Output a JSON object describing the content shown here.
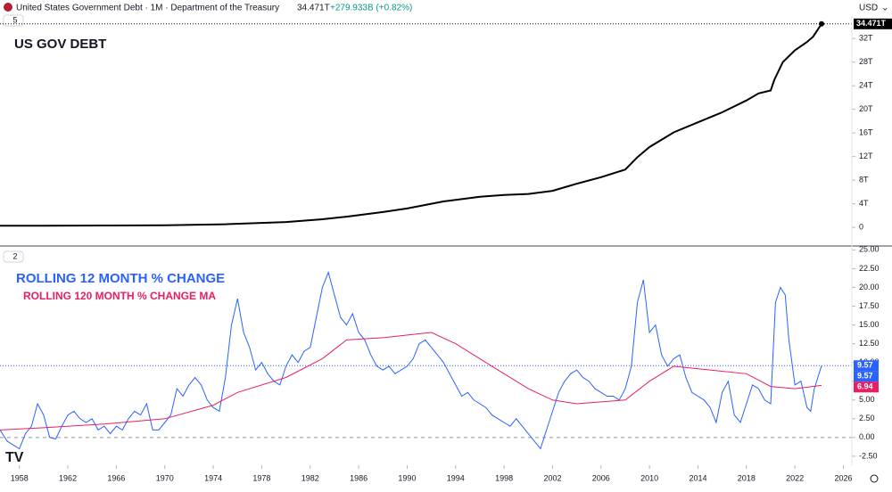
{
  "header": {
    "symbol": "United States Government Debt · 1M · Department of the Treasury",
    "price": "34.471T",
    "change": "+279.933B (+0.82%)",
    "currency": "USD",
    "pane_1": "5",
    "pane_2": "2"
  },
  "chart_data": [
    {
      "type": "line",
      "title": "US GOV DEBT",
      "color": "#000000",
      "x": [
        1956.4,
        1960,
        1965,
        1970,
        1975,
        1980,
        1983,
        1985,
        1988,
        1990,
        1993,
        1996,
        1998,
        2000,
        2002,
        2004,
        2006,
        2008,
        2009,
        2010,
        2012,
        2014,
        2016,
        2018,
        2019,
        2020,
        2020.3,
        2021,
        2022,
        2023,
        2023.5,
        2024.2
      ],
      "values": [
        0.27,
        0.29,
        0.32,
        0.37,
        0.53,
        0.91,
        1.38,
        1.82,
        2.6,
        3.2,
        4.4,
        5.2,
        5.5,
        5.67,
        6.2,
        7.4,
        8.5,
        9.8,
        11.9,
        13.6,
        16.1,
        17.8,
        19.5,
        21.5,
        22.7,
        23.2,
        25.0,
        28.0,
        30.0,
        31.4,
        32.3,
        34.471
      ],
      "last_value_label": "34.471T",
      "xlim": [
        1956.4,
        2026.7
      ],
      "ylim": [
        -3.0,
        35.8
      ],
      "yticks": [
        0,
        {
          "value": 4,
          "label": "4T"
        },
        {
          "value": 8,
          "label": "8T"
        },
        {
          "value": 12,
          "label": "12T"
        },
        {
          "value": 16,
          "label": "16T"
        },
        {
          "value": 20,
          "label": "20T"
        },
        {
          "value": 24,
          "label": "24T"
        },
        {
          "value": 28,
          "label": "28T"
        },
        {
          "value": 32,
          "label": "32T"
        }
      ]
    },
    {
      "type": "line",
      "reference_line": 0,
      "series": [
        {
          "name": "ROLLING  12 MONTH % CHANGE",
          "color": "#2962ff",
          "x": [
            1956.4,
            1957,
            1958,
            1958.5,
            1959,
            1959.5,
            1960,
            1960.5,
            1961,
            1961.5,
            1962,
            1962.5,
            1963,
            1963.5,
            1964,
            1964.5,
            1965,
            1965.5,
            1966,
            1966.5,
            1967,
            1967.5,
            1968,
            1968.5,
            1969,
            1969.5,
            1970,
            1970.5,
            1971,
            1971.5,
            1972,
            1972.5,
            1973,
            1973.5,
            1974,
            1974.5,
            1975,
            1975.5,
            1976,
            1976.5,
            1977,
            1977.5,
            1978,
            1978.5,
            1979,
            1979.5,
            1980,
            1980.5,
            1981,
            1981.5,
            1982,
            1982.5,
            1983,
            1983.5,
            1984,
            1984.5,
            1985,
            1985.5,
            1986,
            1986.5,
            1987,
            1987.5,
            1988,
            1988.5,
            1989,
            1989.5,
            1990,
            1990.5,
            1991,
            1991.5,
            1992,
            1992.5,
            1993,
            1993.5,
            1994,
            1994.5,
            1995,
            1995.5,
            1996,
            1996.5,
            1997,
            1997.5,
            1998,
            1998.5,
            1999,
            1999.5,
            2000,
            2000.5,
            2001,
            2001.5,
            2002,
            2002.5,
            2003,
            2003.5,
            2004,
            2004.5,
            2005,
            2005.5,
            2006,
            2006.5,
            2007,
            2007.5,
            2008,
            2008.5,
            2009,
            2009.5,
            2010,
            2010.5,
            2011,
            2011.5,
            2012,
            2012.5,
            2013,
            2013.5,
            2014,
            2014.5,
            2015,
            2015.5,
            2016,
            2016.5,
            2017,
            2017.5,
            2018,
            2018.5,
            2019,
            2019.5,
            2020,
            2020.4,
            2020.8,
            2021.2,
            2021.5,
            2022,
            2022.5,
            2023,
            2023.3,
            2023.6,
            2024.2
          ],
          "values": [
            1.0,
            -0.5,
            -1.5,
            0.5,
            1.5,
            4.5,
            3.0,
            0.0,
            -0.2,
            1.5,
            3.0,
            3.5,
            2.5,
            2.0,
            2.5,
            1.0,
            1.5,
            0.5,
            1.5,
            1.0,
            2.5,
            3.5,
            3.0,
            4.5,
            1.0,
            1.0,
            2.0,
            3.0,
            6.5,
            5.5,
            7.0,
            8.0,
            7.0,
            5.0,
            4.0,
            3.5,
            8.0,
            15.0,
            18.5,
            14.0,
            12.0,
            9.0,
            10.0,
            8.5,
            7.5,
            7.0,
            9.5,
            11.0,
            10.0,
            11.5,
            12.0,
            16.0,
            20.0,
            22.0,
            19.0,
            16.0,
            15.0,
            16.5,
            14.0,
            13.0,
            11.0,
            9.5,
            9.0,
            9.5,
            8.5,
            9.0,
            9.5,
            10.5,
            12.5,
            13.0,
            12.0,
            11.0,
            10.0,
            8.5,
            7.0,
            5.5,
            6.0,
            5.0,
            4.5,
            4.0,
            3.0,
            2.5,
            2.0,
            1.5,
            2.5,
            1.5,
            0.5,
            -0.5,
            -1.5,
            1.0,
            3.5,
            6.0,
            7.5,
            8.5,
            9.0,
            8.0,
            7.5,
            6.5,
            6.0,
            5.5,
            5.5,
            5.0,
            6.5,
            9.5,
            18.0,
            21.0,
            14.0,
            15.0,
            11.0,
            9.5,
            10.5,
            11.0,
            8.0,
            6.0,
            5.5,
            5.0,
            4.0,
            2.0,
            6.0,
            7.5,
            3.0,
            2.0,
            4.5,
            7.0,
            6.5,
            5.0,
            4.5,
            18.0,
            20.0,
            19.0,
            13.0,
            7.0,
            7.5,
            4.0,
            3.5,
            6.5,
            9.57
          ]
        },
        {
          "name": "ROLLING 120 MONTH % CHANGE MA",
          "color": "#e91e63",
          "x": [
            1956.4,
            1960,
            1965,
            1970,
            1974,
            1976,
            1980,
            1983,
            1985,
            1988,
            1992,
            1994,
            1997,
            2000,
            2002,
            2004,
            2008,
            2010,
            2012,
            2015,
            2018,
            2020,
            2022,
            2024.2
          ],
          "values": [
            1.0,
            1.3,
            1.8,
            2.5,
            4.3,
            6.0,
            8.0,
            10.5,
            13.0,
            13.3,
            14.0,
            12.5,
            9.5,
            6.5,
            5.0,
            4.5,
            5.0,
            7.5,
            9.5,
            9.0,
            8.5,
            6.8,
            6.5,
            6.94
          ]
        }
      ],
      "xlim": [
        1956.4,
        2026.7
      ],
      "ylim": [
        -3.7,
        25.4
      ],
      "xticks": [
        1958,
        1962,
        1966,
        1970,
        1974,
        1978,
        1982,
        1986,
        1990,
        1994,
        1998,
        2002,
        2006,
        2010,
        2014,
        2018,
        2022,
        2026
      ],
      "yticks": [
        {
          "value": -2.5,
          "label": "-2.50"
        },
        {
          "value": 0,
          "label": "0.00"
        },
        {
          "value": 2.5,
          "label": "2.50"
        },
        {
          "value": 5,
          "label": "5.00"
        },
        {
          "value": 7.5,
          "label": "7.50"
        },
        {
          "value": 10,
          "label": "10.00"
        },
        {
          "value": 12.5,
          "label": "12.50"
        },
        {
          "value": 15,
          "label": "15.00"
        },
        {
          "value": 17.5,
          "label": "17.50"
        },
        {
          "value": 20,
          "label": "20.00"
        },
        {
          "value": 22.5,
          "label": "22.50"
        },
        {
          "value": 25,
          "label": "25.00"
        }
      ]
    }
  ]
}
